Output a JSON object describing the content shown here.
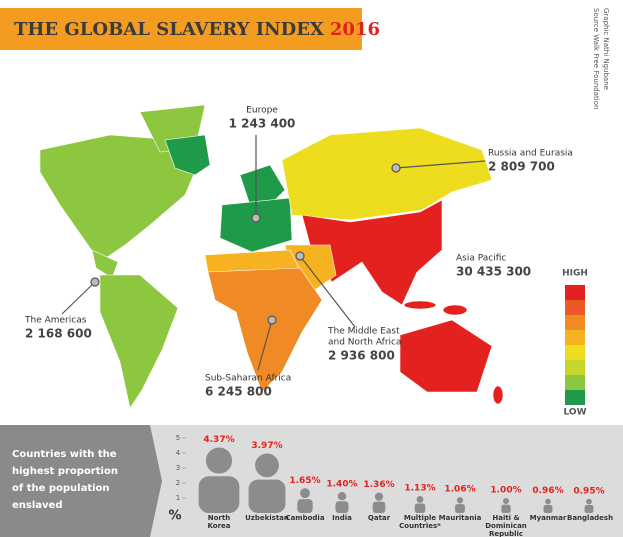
{
  "header": {
    "title": "THE GLOBAL SLAVERY INDEX",
    "year": "2016"
  },
  "credits": {
    "source": "Source Walk Free Foundation",
    "graphic": "Graphic Nathi Ngubane"
  },
  "regions": [
    {
      "label_lines": [
        "Europe"
      ],
      "value": "1 243 400"
    },
    {
      "label_lines": [
        "Russia and Eurasia"
      ],
      "value": "2 809 700"
    },
    {
      "label_lines": [
        "Asia Pacific"
      ],
      "value": "30 435 300"
    },
    {
      "label_lines": [
        "The Americas"
      ],
      "value": "2 168 600"
    },
    {
      "label_lines": [
        "The Middle East",
        "and North Africa"
      ],
      "value": "2 936 800"
    },
    {
      "label_lines": [
        "Sub-Saharan Africa"
      ],
      "value": "6 245 800"
    }
  ],
  "legend": {
    "high": "HIGH",
    "low": "LOW",
    "colors": [
      "#e3221f",
      "#eb5a24",
      "#f08a24",
      "#f6b221",
      "#eedd1e",
      "#c4d72c",
      "#8dc63f",
      "#1f9a48"
    ]
  },
  "panel": {
    "heading": "Countries with the highest proportion of the population enslaved"
  },
  "chart_data": {
    "type": "pictogram",
    "y_label": "%",
    "categories": [
      "North Korea",
      "Uzbekistan",
      "Cambodia",
      "India",
      "Qatar",
      "Multiple Countries*",
      "Mauritania",
      "Haiti & Dominican Republic",
      "Myanmar",
      "Bangladesh"
    ],
    "values": [
      4.37,
      3.97,
      1.65,
      1.4,
      1.36,
      1.13,
      1.06,
      1.0,
      0.96,
      0.95
    ],
    "value_labels": [
      "4.37%",
      "3.97%",
      "1.65%",
      "1.40%",
      "1.36%",
      "1.13%",
      "1.06%",
      "1.00%",
      "0.96%",
      "0.95%"
    ],
    "ylim": [
      0,
      5
    ],
    "yticks": [
      1,
      2,
      3,
      4,
      5
    ],
    "color": "#8c8c8c",
    "label_color": "#e3221f"
  }
}
